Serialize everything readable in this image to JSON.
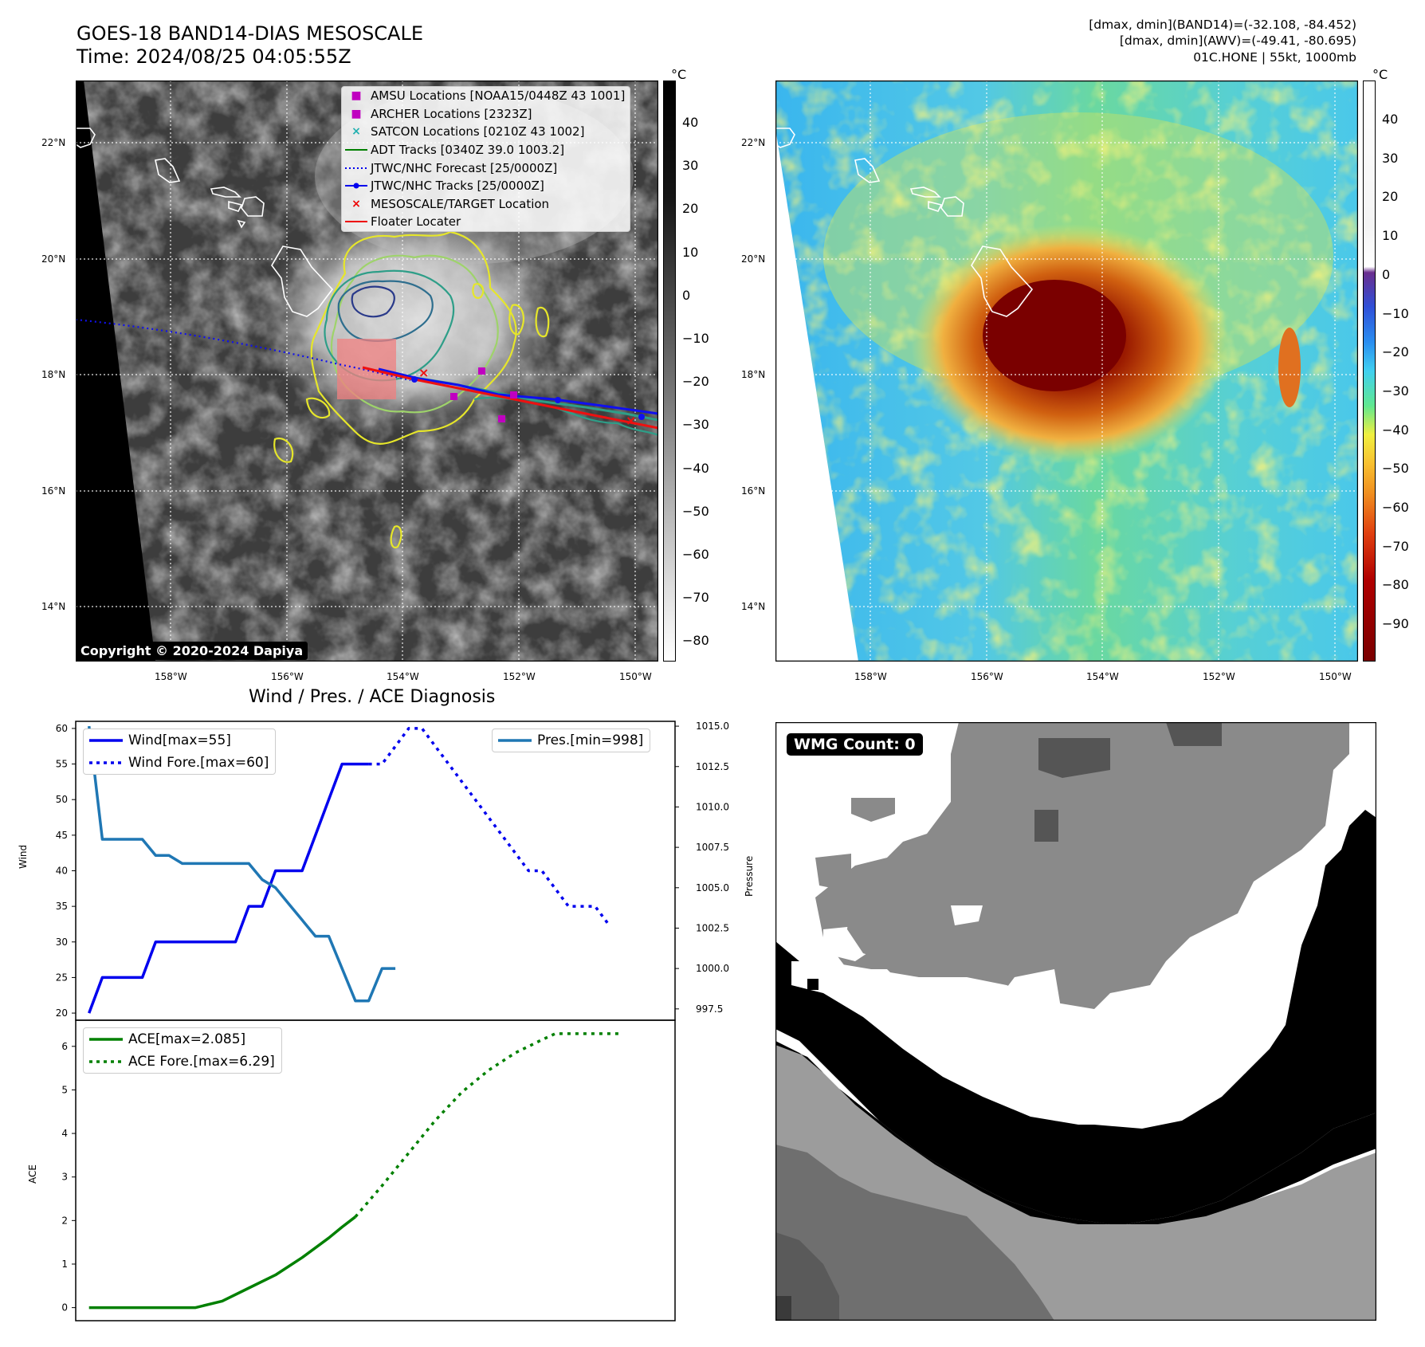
{
  "header": {
    "title_line1": "GOES-18 BAND14-DIAS MESOSCALE",
    "title_line2": "Time: 2024/08/25 04:05:55Z",
    "info_line1": "[dmax, dmin](BAND14)=(-32.108, -84.452)",
    "info_line2": "[dmax, dmin](AWV)=(-49.41, -80.695)",
    "info_line3": "01C.HONE | 55kt, 1000mb"
  },
  "map_axes": {
    "lat_labels": [
      "22°N",
      "20°N",
      "18°N",
      "16°N",
      "14°N"
    ],
    "lon_labels": [
      "158°W",
      "156°W",
      "154°W",
      "152°W",
      "150°W"
    ],
    "grid": "dotted"
  },
  "legend": {
    "items": [
      {
        "label": "AMSU Locations [NOAA15/0448Z 43 1001]",
        "marker": "■",
        "color": "#c000c0"
      },
      {
        "label": "ARCHER Locations [2323Z]",
        "marker": "■",
        "color": "#c000c0"
      },
      {
        "label": "SATCON Locations [0210Z 43 1002]",
        "marker": "×",
        "color": "#20b0b0"
      },
      {
        "label": "ADT Tracks [0340Z 39.0 1003.2]",
        "marker": "line",
        "color": "#008000"
      },
      {
        "label": "JTWC/NHC Forecast [25/0000Z]",
        "marker": "dotted",
        "color": "#0000ee"
      },
      {
        "label": "JTWC/NHC Tracks [25/0000Z]",
        "marker": "line-dot",
        "color": "#0000ee"
      },
      {
        "label": "MESOSCALE/TARGET Location",
        "marker": "×",
        "color": "#ee0000"
      },
      {
        "label": "Floater Locater",
        "marker": "line",
        "color": "#ee0000"
      }
    ]
  },
  "copyright": "Copyright © 2020-2024 Dapiya",
  "colorbar_band14": {
    "unit": "°C",
    "ticks": [
      "40",
      "30",
      "20",
      "10",
      "0",
      "−10",
      "−20",
      "−30",
      "−40",
      "−50",
      "−60",
      "−70",
      "−80"
    ]
  },
  "colorbar_awv": {
    "unit": "°C",
    "ticks": [
      "40",
      "30",
      "20",
      "10",
      "0",
      "−10",
      "−20",
      "−30",
      "−40",
      "−50",
      "−60",
      "−70",
      "−80",
      "−90"
    ]
  },
  "wmg_label": "WMG Count: 0",
  "colors": {
    "wind": "#0000ee",
    "pressure": "#1f77b4",
    "ace": "#008000"
  },
  "chart_data": [
    {
      "type": "line",
      "title": "Wind / Pres. / ACE Diagnosis",
      "ylabel": "Wind",
      "y2label": "Pressure",
      "ylim": [
        19,
        61
      ],
      "y2lim": [
        996.8,
        1015.3
      ],
      "yticks": [
        "60",
        "55",
        "50",
        "45",
        "40",
        "35",
        "30",
        "25",
        "20"
      ],
      "y2ticks": [
        "1015.0",
        "1012.5",
        "1010.0",
        "1007.5",
        "1005.0",
        "1002.5",
        "1000.0",
        "997.5"
      ],
      "legend_left": [
        "Wind[max=55]",
        "Wind Fore.[max=60]"
      ],
      "legend_right": [
        "Pres.[min=998]"
      ],
      "series": [
        {
          "name": "Wind[max=55]",
          "style": "solid",
          "color": "#0000ee",
          "points": [
            [
              0,
              20
            ],
            [
              1,
              25
            ],
            [
              2,
              25
            ],
            [
              3,
              25
            ],
            [
              4,
              25
            ],
            [
              5,
              30
            ],
            [
              6,
              30
            ],
            [
              7,
              30
            ],
            [
              8,
              30
            ],
            [
              9,
              30
            ],
            [
              10,
              30
            ],
            [
              11,
              30
            ],
            [
              12,
              35
            ],
            [
              13,
              35
            ],
            [
              14,
              40
            ],
            [
              15,
              40
            ],
            [
              16,
              40
            ],
            [
              17,
              45
            ],
            [
              18,
              50
            ],
            [
              19,
              55
            ],
            [
              20,
              55
            ],
            [
              21,
              55
            ]
          ]
        },
        {
          "name": "Wind Fore.[max=60]",
          "style": "dotted",
          "color": "#0000ee",
          "points": [
            [
              21,
              55
            ],
            [
              22,
              55
            ],
            [
              23,
              57.5
            ],
            [
              24,
              60
            ],
            [
              25,
              60
            ],
            [
              26,
              57.5
            ],
            [
              27,
              55
            ],
            [
              28,
              52.5
            ],
            [
              29,
              50
            ],
            [
              30,
              47.5
            ],
            [
              31,
              45
            ],
            [
              32,
              42.5
            ],
            [
              33,
              40
            ],
            [
              34,
              40
            ],
            [
              35,
              37.5
            ],
            [
              36,
              35
            ],
            [
              37,
              35
            ],
            [
              38,
              35
            ],
            [
              39,
              32.5
            ]
          ]
        },
        {
          "name": "Pres.[min=998]",
          "style": "solid",
          "color": "#1f77b4",
          "axis": "right",
          "points": [
            [
              0,
              1015
            ],
            [
              1,
              1008
            ],
            [
              2,
              1008
            ],
            [
              3,
              1008
            ],
            [
              4,
              1008
            ],
            [
              5,
              1007
            ],
            [
              6,
              1007
            ],
            [
              7,
              1006.5
            ],
            [
              8,
              1006.5
            ],
            [
              9,
              1006.5
            ],
            [
              10,
              1006.5
            ],
            [
              11,
              1006.5
            ],
            [
              12,
              1006.5
            ],
            [
              13,
              1005.5
            ],
            [
              14,
              1005
            ],
            [
              15,
              1004
            ],
            [
              16,
              1003
            ],
            [
              17,
              1002
            ],
            [
              18,
              1002
            ],
            [
              19,
              1000
            ],
            [
              20,
              998
            ],
            [
              21,
              998
            ],
            [
              22,
              1000
            ],
            [
              23,
              1000
            ]
          ]
        }
      ]
    },
    {
      "type": "line",
      "ylabel": "ACE",
      "ylim": [
        -0.3,
        6.6
      ],
      "yticks": [
        "6",
        "5",
        "4",
        "3",
        "2",
        "1",
        "0"
      ],
      "legend_left": [
        "ACE[max=2.085]",
        "ACE Fore.[max=6.29]"
      ],
      "series": [
        {
          "name": "ACE[max=2.085]",
          "style": "solid",
          "color": "#008000",
          "points": [
            [
              0,
              0
            ],
            [
              4,
              0
            ],
            [
              8,
              0
            ],
            [
              10,
              0.15
            ],
            [
              12,
              0.45
            ],
            [
              14,
              0.75
            ],
            [
              16,
              1.15
            ],
            [
              18,
              1.6
            ],
            [
              19,
              1.85
            ],
            [
              20,
              2.085
            ]
          ]
        },
        {
          "name": "ACE Fore.[max=6.29]",
          "style": "dotted",
          "color": "#008000",
          "points": [
            [
              20,
              2.085
            ],
            [
              22,
              2.8
            ],
            [
              24,
              3.55
            ],
            [
              26,
              4.3
            ],
            [
              28,
              4.95
            ],
            [
              30,
              5.45
            ],
            [
              32,
              5.85
            ],
            [
              34,
              6.15
            ],
            [
              35,
              6.29
            ],
            [
              38,
              6.29
            ],
            [
              40,
              6.29
            ]
          ]
        }
      ]
    }
  ]
}
